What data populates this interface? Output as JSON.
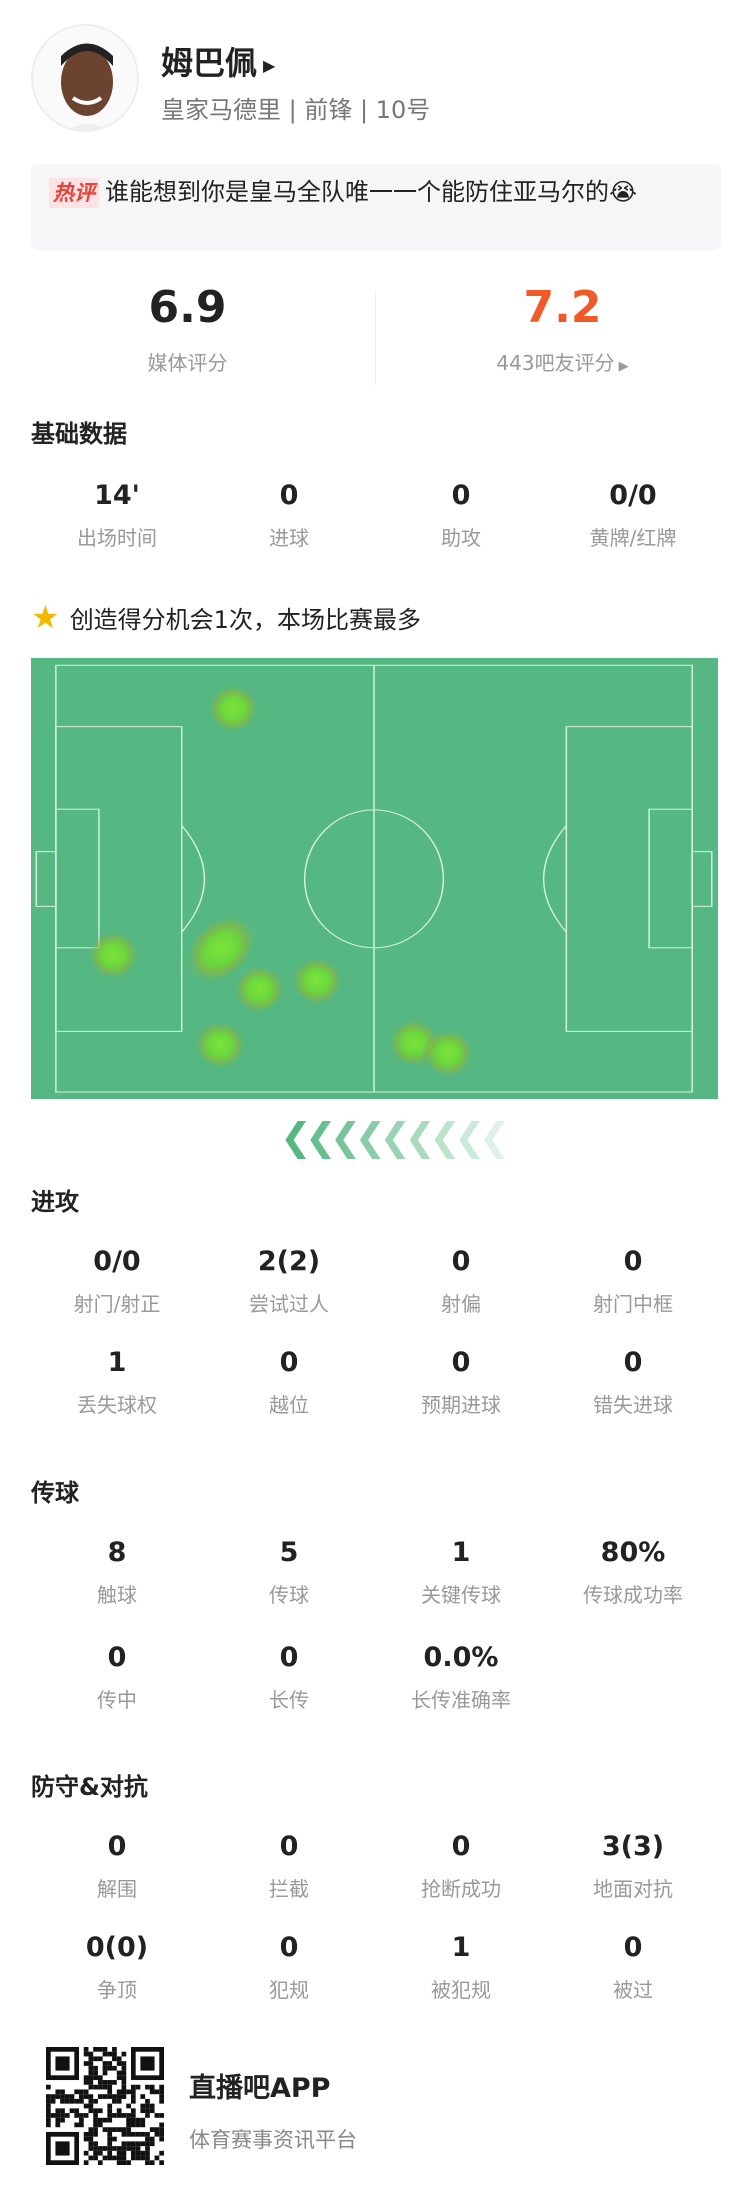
{
  "player": {
    "name": "姆巴佩",
    "team": "皇家马德里",
    "position": "前锋",
    "number": "10号",
    "subtitle": "皇家马德里 | 前锋 | 10号"
  },
  "hot_comment": {
    "tag": "热评",
    "text": "谁能想到你是皇马全队唯一一个能防住亚马尔的",
    "emoji": "crying-emoji"
  },
  "ratings": {
    "media": {
      "value": "6.9",
      "label": "媒体评分"
    },
    "fans": {
      "value": "7.2",
      "label": "443吧友评分",
      "color": "#f05a28"
    }
  },
  "basic": {
    "title": "基础数据",
    "stats": [
      {
        "value": "14'",
        "label": "出场时间"
      },
      {
        "value": "0",
        "label": "进球"
      },
      {
        "value": "0",
        "label": "助攻"
      },
      {
        "value": "0/0",
        "label": "黄牌/红牌"
      }
    ]
  },
  "highlight": {
    "icon": "star-icon",
    "text": "创造得分机会1次，本场比赛最多"
  },
  "heatmap": {
    "pitch_color": "#55b882",
    "attack_direction": "left",
    "spots_m": [
      [
        29.3,
        6.9
      ],
      [
        9.5,
        46.2
      ],
      [
        27.3,
        45.2
      ],
      [
        33.6,
        51.6
      ],
      [
        43.1,
        50.3
      ],
      [
        27.1,
        60.5
      ],
      [
        59.1,
        60.2
      ],
      [
        64.7,
        61.8
      ]
    ]
  },
  "attack": {
    "title": "进攻",
    "stats": [
      {
        "value": "0/0",
        "label": "射门/射正"
      },
      {
        "value": "2(2)",
        "label": "尝试过人"
      },
      {
        "value": "0",
        "label": "射偏"
      },
      {
        "value": "0",
        "label": "射门中框"
      },
      {
        "value": "1",
        "label": "丢失球权"
      },
      {
        "value": "0",
        "label": "越位"
      },
      {
        "value": "0",
        "label": "预期进球"
      },
      {
        "value": "0",
        "label": "错失进球"
      }
    ]
  },
  "passing": {
    "title": "传球",
    "stats": [
      {
        "value": "8",
        "label": "触球"
      },
      {
        "value": "5",
        "label": "传球"
      },
      {
        "value": "1",
        "label": "关键传球"
      },
      {
        "value": "80%",
        "label": "传球成功率"
      },
      {
        "value": "0",
        "label": "传中"
      },
      {
        "value": "0",
        "label": "长传"
      },
      {
        "value": "0.0%",
        "label": "长传准确率"
      }
    ]
  },
  "defense": {
    "title": "防守&对抗",
    "stats": [
      {
        "value": "0",
        "label": "解围"
      },
      {
        "value": "0",
        "label": "拦截"
      },
      {
        "value": "0",
        "label": "抢断成功"
      },
      {
        "value": "3(3)",
        "label": "地面对抗"
      },
      {
        "value": "0(0)",
        "label": "争顶"
      },
      {
        "value": "0",
        "label": "犯规"
      },
      {
        "value": "1",
        "label": "被犯规"
      },
      {
        "value": "0",
        "label": "被过"
      }
    ]
  },
  "footer": {
    "app_name": "直播吧APP",
    "tagline": "体育赛事资讯平台"
  }
}
